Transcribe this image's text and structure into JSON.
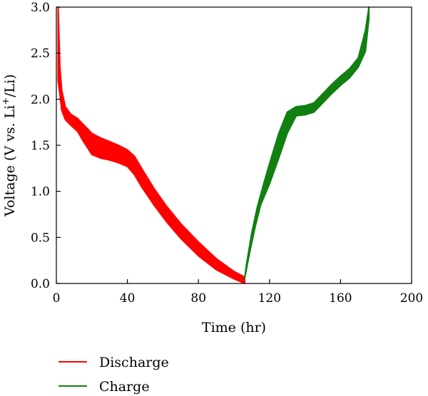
{
  "chart_data": {
    "type": "line",
    "xlabel": "Time (hr)",
    "ylabel_parts": {
      "pre": "Voltage (V vs. Li",
      "sup": "+",
      "post": "/Li)"
    },
    "xlim": [
      0,
      200
    ],
    "ylim": [
      0,
      3.0
    ],
    "x_ticks": [
      0,
      40,
      80,
      120,
      160,
      200
    ],
    "y_ticks": [
      0.0,
      0.5,
      1.0,
      1.5,
      2.0,
      2.5,
      3.0
    ],
    "y_tick_labels": [
      "0.0",
      "0.5",
      "1.0",
      "1.5",
      "2.0",
      "2.5",
      "3.0"
    ],
    "grid": false,
    "legend_position": "bottom-left, below plot",
    "series": [
      {
        "name": "Discharge",
        "color": "#ff0000",
        "upper": [
          [
            1,
            3.0
          ],
          [
            2,
            2.35
          ],
          [
            3,
            2.1
          ],
          [
            5,
            1.92
          ],
          [
            8,
            1.84
          ],
          [
            12,
            1.79
          ],
          [
            15,
            1.73
          ],
          [
            20,
            1.63
          ],
          [
            25,
            1.58
          ],
          [
            30,
            1.54
          ],
          [
            35,
            1.5
          ],
          [
            40,
            1.45
          ],
          [
            44,
            1.38
          ],
          [
            48,
            1.25
          ],
          [
            55,
            1.03
          ],
          [
            62,
            0.84
          ],
          [
            70,
            0.65
          ],
          [
            80,
            0.45
          ],
          [
            90,
            0.27
          ],
          [
            100,
            0.13
          ],
          [
            106,
            0.07
          ]
        ],
        "lower": [
          [
            1,
            2.2
          ],
          [
            2,
            2.05
          ],
          [
            3,
            1.88
          ],
          [
            5,
            1.78
          ],
          [
            8,
            1.72
          ],
          [
            12,
            1.65
          ],
          [
            15,
            1.55
          ],
          [
            20,
            1.4
          ],
          [
            25,
            1.36
          ],
          [
            30,
            1.34
          ],
          [
            35,
            1.31
          ],
          [
            40,
            1.27
          ],
          [
            44,
            1.18
          ],
          [
            48,
            1.05
          ],
          [
            55,
            0.85
          ],
          [
            62,
            0.67
          ],
          [
            70,
            0.49
          ],
          [
            80,
            0.3
          ],
          [
            90,
            0.15
          ],
          [
            100,
            0.05
          ],
          [
            106,
            0.0
          ]
        ]
      },
      {
        "name": "Charge",
        "color": "#118011",
        "upper": [
          [
            107,
            0.2
          ],
          [
            110,
            0.55
          ],
          [
            113,
            0.82
          ],
          [
            117,
            1.1
          ],
          [
            120,
            1.3
          ],
          [
            125,
            1.62
          ],
          [
            130,
            1.86
          ],
          [
            135,
            1.92
          ],
          [
            140,
            1.93
          ],
          [
            145,
            1.96
          ],
          [
            150,
            2.06
          ],
          [
            155,
            2.16
          ],
          [
            160,
            2.25
          ],
          [
            165,
            2.33
          ],
          [
            170,
            2.45
          ],
          [
            174,
            2.75
          ],
          [
            176,
            3.0
          ]
        ],
        "lower": [
          [
            106,
            0.05
          ],
          [
            109,
            0.35
          ],
          [
            112,
            0.62
          ],
          [
            115,
            0.85
          ],
          [
            120,
            1.08
          ],
          [
            125,
            1.35
          ],
          [
            130,
            1.63
          ],
          [
            135,
            1.82
          ],
          [
            140,
            1.83
          ],
          [
            145,
            1.86
          ],
          [
            150,
            1.96
          ],
          [
            155,
            2.06
          ],
          [
            160,
            2.15
          ],
          [
            165,
            2.23
          ],
          [
            170,
            2.35
          ],
          [
            174,
            2.52
          ],
          [
            176,
            2.88
          ]
        ]
      }
    ]
  }
}
